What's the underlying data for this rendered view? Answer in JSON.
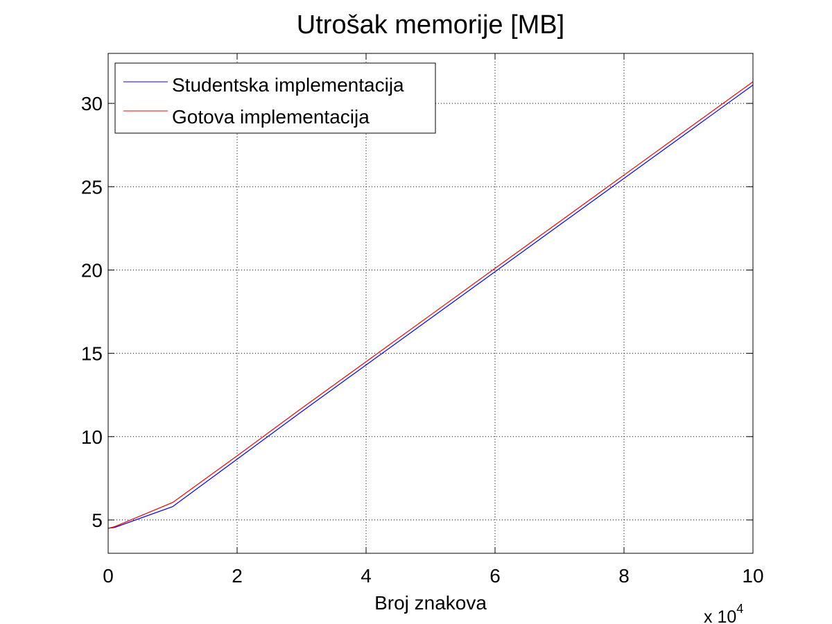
{
  "chart_data": {
    "type": "line",
    "title": "Utrošak memorije [MB]",
    "xlabel": "Broj znakova",
    "ylabel": "",
    "x_multiplier_label": "x 10",
    "x_multiplier_exponent": "4",
    "xlim": [
      0,
      10
    ],
    "ylim": [
      3,
      33
    ],
    "xticks": [
      0,
      2,
      4,
      6,
      8,
      10
    ],
    "yticks": [
      5,
      10,
      15,
      20,
      25,
      30
    ],
    "grid": true,
    "legend_position": "top-left",
    "x": [
      0,
      0.1,
      1,
      2,
      3,
      4,
      5,
      6,
      7,
      8,
      9,
      10
    ],
    "series": [
      {
        "name": "Studentska implementacija",
        "color": "#0000ff",
        "values": [
          4.5,
          4.55,
          5.8,
          8.65,
          11.5,
          14.3,
          17.1,
          19.9,
          22.7,
          25.5,
          28.3,
          31.1
        ]
      },
      {
        "name": "Gotova implementacija",
        "color": "#ff0000",
        "values": [
          4.5,
          4.6,
          6.05,
          8.85,
          11.7,
          14.5,
          17.3,
          20.1,
          22.9,
          25.7,
          28.5,
          31.3
        ]
      }
    ]
  }
}
